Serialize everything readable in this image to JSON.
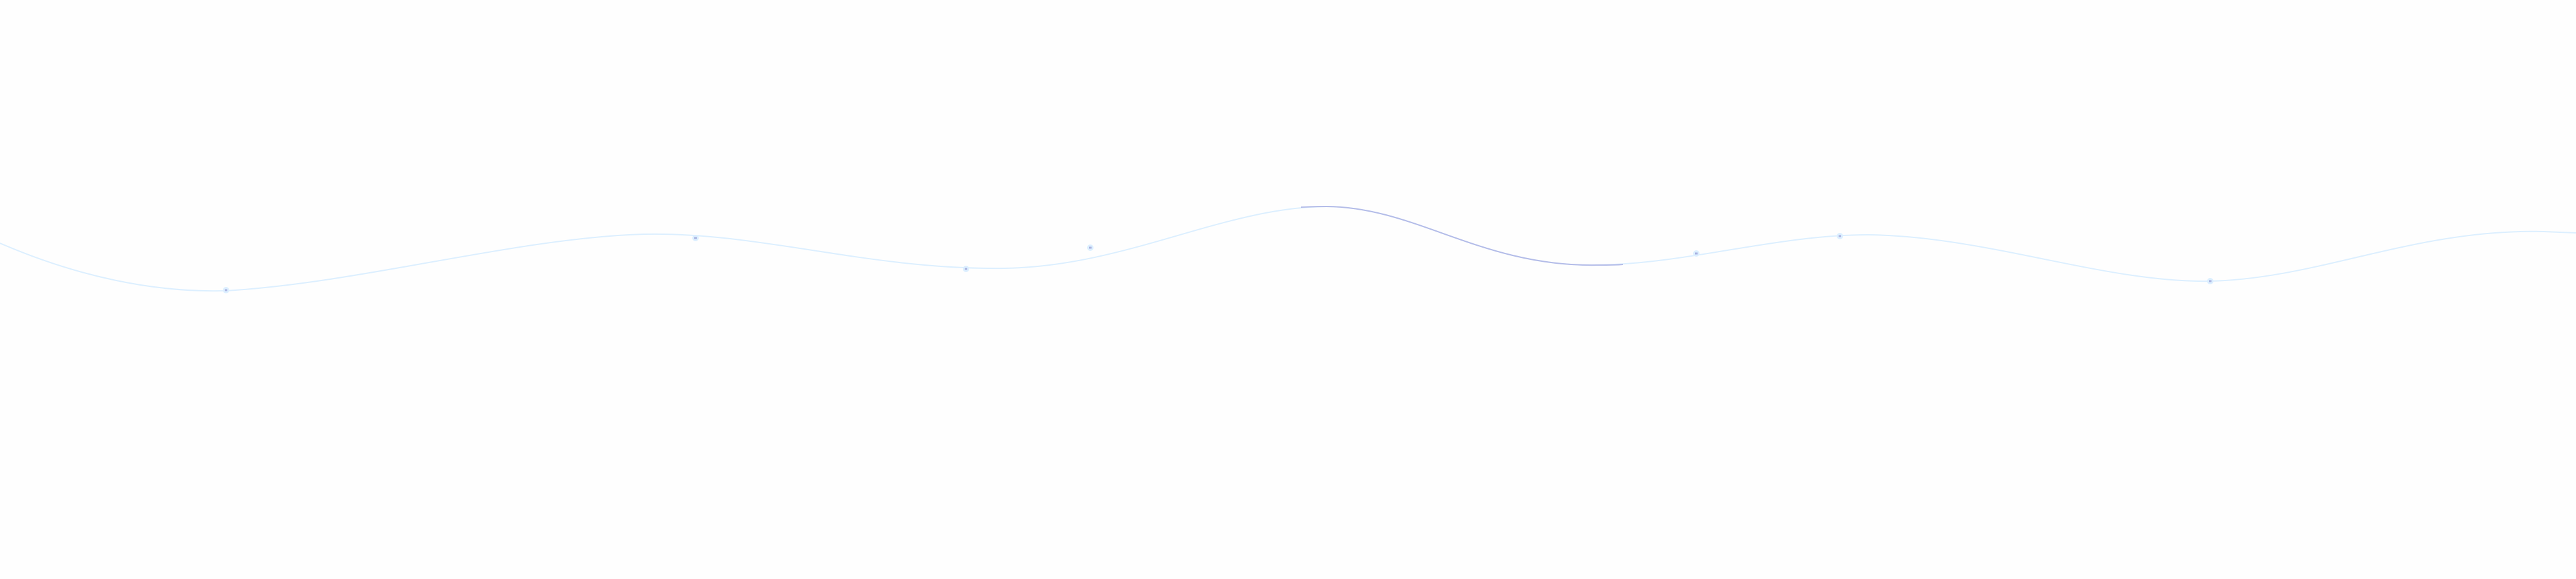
{
  "colors": {
    "background": "#fefefe",
    "wave": "#dcefff",
    "wave_highlight": "#b4bce8",
    "sparkle": "#a9b2e0"
  },
  "decoration": {
    "type": "wave-line",
    "sparkle_count": 7
  }
}
